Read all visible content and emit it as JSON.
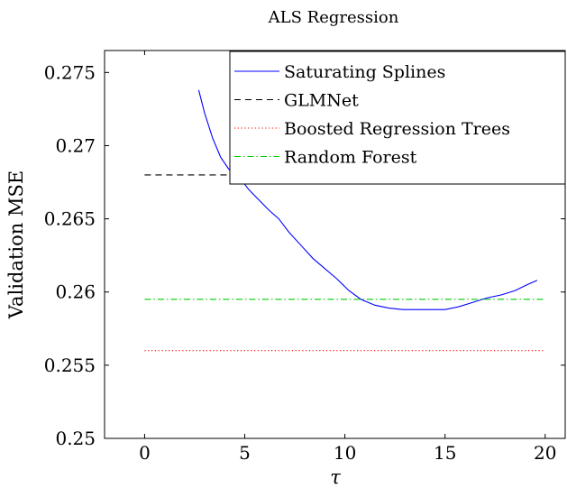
{
  "chart_data": {
    "type": "line",
    "title": "ALS Regression",
    "xlabel": "τ",
    "ylabel": "Validation MSE",
    "xlim": [
      -2,
      21
    ],
    "ylim": [
      0.25,
      0.2765
    ],
    "xticks": [
      0,
      5,
      10,
      15,
      20
    ],
    "xtick_labels": [
      "0",
      "5",
      "10",
      "15",
      "20"
    ],
    "yticks": [
      0.25,
      0.255,
      0.26,
      0.265,
      0.27,
      0.275
    ],
    "ytick_labels": [
      "0.25",
      "0.255",
      "0.26",
      "0.265",
      "0.27",
      "0.275"
    ],
    "grid": false,
    "legend_position": "top-right",
    "series": [
      {
        "name": "Saturating Splines",
        "color": "#0000ff",
        "style": "solid",
        "x": [
          2.7,
          3.0,
          3.4,
          3.8,
          4.2,
          4.7,
          5.2,
          5.7,
          6.2,
          6.7,
          7.2,
          7.8,
          8.4,
          9.0,
          9.6,
          10.2,
          10.8,
          11.5,
          12.2,
          12.9,
          13.6,
          14.3,
          15.0,
          15.7,
          16.4,
          17.1,
          17.8,
          18.5,
          19.1,
          19.6
        ],
        "y": [
          0.2738,
          0.2722,
          0.2705,
          0.2692,
          0.2684,
          0.2679,
          0.267,
          0.2663,
          0.2656,
          0.265,
          0.2641,
          0.2632,
          0.2623,
          0.2616,
          0.2609,
          0.2601,
          0.2595,
          0.2591,
          0.2589,
          0.2588,
          0.2588,
          0.2588,
          0.2588,
          0.259,
          0.2593,
          0.2596,
          0.2598,
          0.2601,
          0.2605,
          0.2608
        ]
      },
      {
        "name": "GLMNet",
        "color": "#000000",
        "style": "dashed",
        "x": [
          0,
          20
        ],
        "y": [
          0.268,
          0.268
        ]
      },
      {
        "name": "Boosted Regression Trees",
        "color": "#ff0000",
        "style": "dotted",
        "x": [
          0,
          20
        ],
        "y": [
          0.256,
          0.256
        ]
      },
      {
        "name": "Random Forest",
        "color": "#00cc00",
        "style": "dashdot",
        "x": [
          0,
          20
        ],
        "y": [
          0.2595,
          0.2595
        ]
      }
    ]
  }
}
